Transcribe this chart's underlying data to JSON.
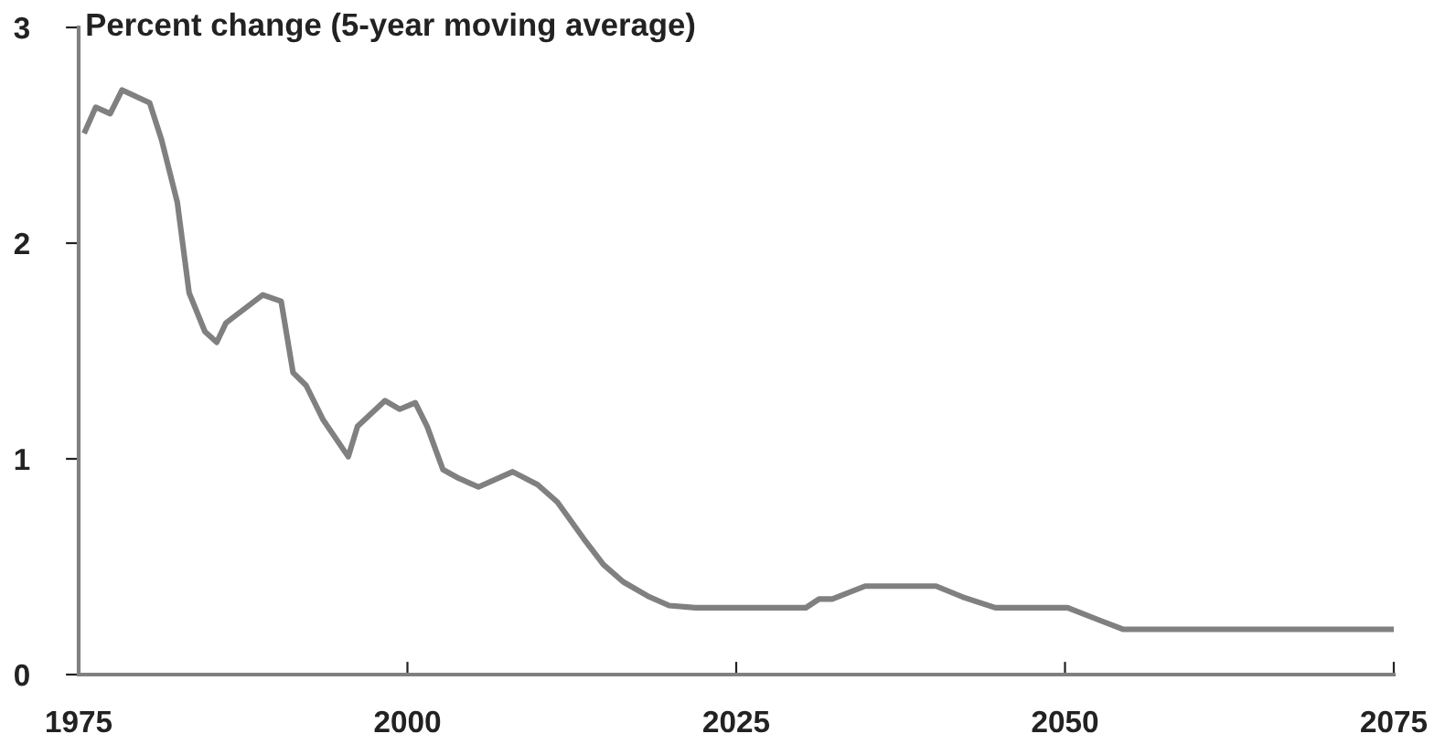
{
  "chart_data": {
    "type": "line",
    "title": "Percent change (5-year moving average)",
    "xlim": [
      1975,
      2075
    ],
    "ylim": [
      0,
      3
    ],
    "xticks": [
      1975,
      2000,
      2025,
      2050,
      2075
    ],
    "yticks": [
      0,
      1,
      2,
      3
    ],
    "grid": false,
    "legend": false,
    "marker": "none",
    "line_style": "solid",
    "series": [
      {
        "color": "#808080",
        "x": [
          1975.5,
          1976.3,
          1977.4,
          1978.3,
          1980.4,
          1981.3,
          1982.5,
          1983.4,
          1984.6,
          1985.5,
          1986.2,
          1989,
          1990.4,
          1991.3,
          1992.3,
          1993.6,
          1995.5,
          1996.2,
          1998.3,
          1999.4,
          2000.6,
          2001.5,
          2002.7,
          2003.9,
          2005.4,
          2008.0,
          2009.9,
          2011.4,
          2013.4,
          2014.9,
          2016.4,
          2018.4,
          2019.9,
          2021.9,
          2030.3,
          2031.3,
          2032.3,
          2034.8,
          2040.2,
          2042.2,
          2044.7,
          2050.2,
          2052.7,
          2054.4,
          2075
        ],
        "values": [
          2.52,
          2.63,
          2.6,
          2.71,
          2.65,
          2.48,
          2.19,
          1.77,
          1.59,
          1.54,
          1.63,
          1.76,
          1.73,
          1.4,
          1.34,
          1.18,
          1.01,
          1.15,
          1.27,
          1.23,
          1.26,
          1.15,
          0.95,
          0.91,
          0.87,
          0.94,
          0.88,
          0.8,
          0.63,
          0.51,
          0.43,
          0.36,
          0.32,
          0.31,
          0.31,
          0.35,
          0.35,
          0.41,
          0.41,
          0.36,
          0.31,
          0.31,
          0.25,
          0.21,
          0.21
        ]
      }
    ]
  }
}
